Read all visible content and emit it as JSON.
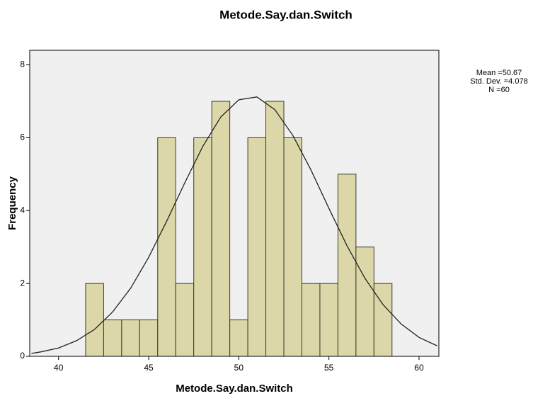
{
  "chart_data": {
    "type": "histogram",
    "title": "Metode.Say.dan.Switch",
    "x_label": "Metode.Say.dan.Switch",
    "y_label": "Frequency",
    "bins": [
      41.5,
      42.5,
      43.5,
      44.5,
      45.5,
      46.5,
      47.5,
      48.5,
      49.5,
      50.5,
      51.5,
      52.5,
      53.5,
      54.5,
      55.5,
      56.5,
      57.5,
      58.5
    ],
    "values": [
      2,
      1,
      1,
      1,
      6,
      2,
      6,
      7,
      1,
      6,
      7,
      6,
      2,
      2,
      5,
      3,
      2
    ],
    "color": "#dcd7a8",
    "xlim": [
      38.4,
      61.1
    ],
    "ylim": [
      0,
      8.4
    ],
    "xticks": [
      40,
      45,
      50,
      55,
      60
    ],
    "yticks": [
      0,
      2,
      4,
      6,
      8
    ],
    "curve": {
      "x": [
        38.5,
        39,
        40,
        41,
        42,
        43,
        44,
        45,
        46,
        47,
        48,
        49,
        50,
        51,
        52,
        53,
        54,
        55,
        56,
        57,
        58,
        59,
        60,
        61
      ],
      "values": [
        0.08,
        0.12,
        0.23,
        0.43,
        0.74,
        1.22,
        1.87,
        2.72,
        3.71,
        4.76,
        5.76,
        6.57,
        7.04,
        7.12,
        6.77,
        6.06,
        5.12,
        4.06,
        3.04,
        2.14,
        1.42,
        0.89,
        0.52,
        0.29
      ]
    },
    "stats": [
      "Mean =50.67",
      "Std. Dev. =4.078",
      "N =60"
    ]
  }
}
